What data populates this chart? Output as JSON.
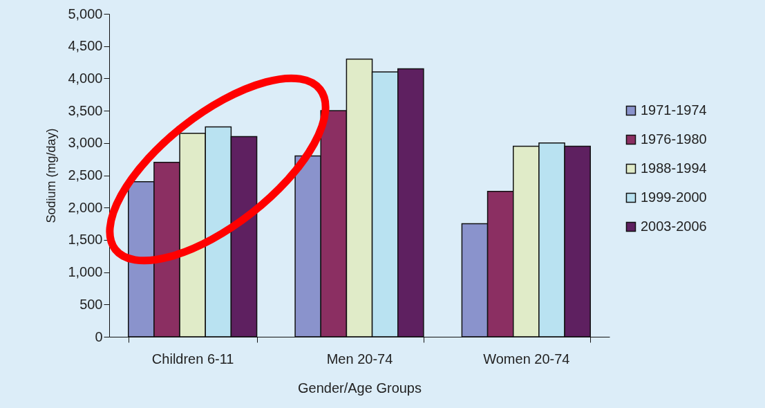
{
  "chart_data": {
    "type": "bar",
    "xlabel": "Gender/Age Groups",
    "ylabel": "Sodium (mg/day)",
    "categories": [
      "Children 6-11",
      "Men 20-74",
      "Women 20-74"
    ],
    "series": [
      {
        "name": "1971-1974",
        "color": "#8a93cc",
        "values": [
          2400,
          2800,
          1750
        ]
      },
      {
        "name": "1976-1980",
        "color": "#8b2f62",
        "values": [
          2700,
          3500,
          2250
        ]
      },
      {
        "name": "1988-1994",
        "color": "#e0ebc8",
        "values": [
          3150,
          4300,
          2950
        ]
      },
      {
        "name": "1999-2000",
        "color": "#b9e2f1",
        "values": [
          3250,
          4100,
          3000
        ]
      },
      {
        "name": "2003-2006",
        "color": "#5e2060",
        "values": [
          3100,
          4150,
          2950
        ]
      }
    ],
    "ylim": [
      0,
      5000
    ],
    "yticks": [
      0,
      {
        "value": 500,
        "label": "500"
      },
      {
        "value": 1000,
        "label": "1,000"
      },
      {
        "value": 1500,
        "label": "1,500"
      },
      {
        "value": 2000,
        "label": "2,000"
      },
      {
        "value": 2500,
        "label": "2,500"
      },
      {
        "value": 3000,
        "label": "3,000"
      },
      {
        "value": 3500,
        "label": "3,500"
      },
      {
        "value": 4000,
        "label": "4,000"
      },
      {
        "value": 4500,
        "label": "4,500"
      },
      {
        "value": 5000,
        "label": "5,000"
      }
    ],
    "grid": false,
    "legend": "right"
  }
}
